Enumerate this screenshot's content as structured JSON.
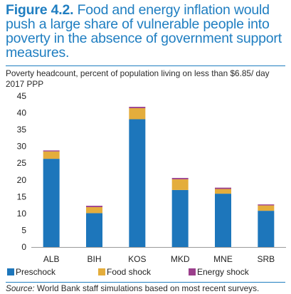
{
  "figure": {
    "number": "Figure 4.2.",
    "title": "Food and energy inflation would push a large share of vulnerable people into poverty in the absence of government support measures."
  },
  "chart_data": {
    "type": "bar",
    "stacked": true,
    "ylabel": "Poverty headcount, percent of population living on less than $6.85/ day 2017 PPP",
    "ylim": [
      0,
      45
    ],
    "yticks": [
      0,
      5,
      10,
      15,
      20,
      25,
      30,
      35,
      40,
      45
    ],
    "grid": false,
    "legend_position": "bottom-left",
    "categories": [
      "ALB",
      "BIH",
      "KOS",
      "MKD",
      "MNE",
      "SRB"
    ],
    "series": [
      {
        "name": "Preschock",
        "color": "#1d76bb",
        "values": [
          26.3,
          10.1,
          38.1,
          17.0,
          15.9,
          10.8
        ]
      },
      {
        "name": "Food shock",
        "color": "#e4ad3c",
        "values": [
          2.2,
          1.8,
          3.3,
          3.2,
          1.4,
          1.6
        ]
      },
      {
        "name": "Energy shock",
        "color": "#9b3f8c",
        "values": [
          0.3,
          0.4,
          0.4,
          0.4,
          0.4,
          0.3
        ]
      }
    ]
  },
  "source": {
    "label": "Source:",
    "text": " World Bank staff simulations based on most recent surveys."
  }
}
